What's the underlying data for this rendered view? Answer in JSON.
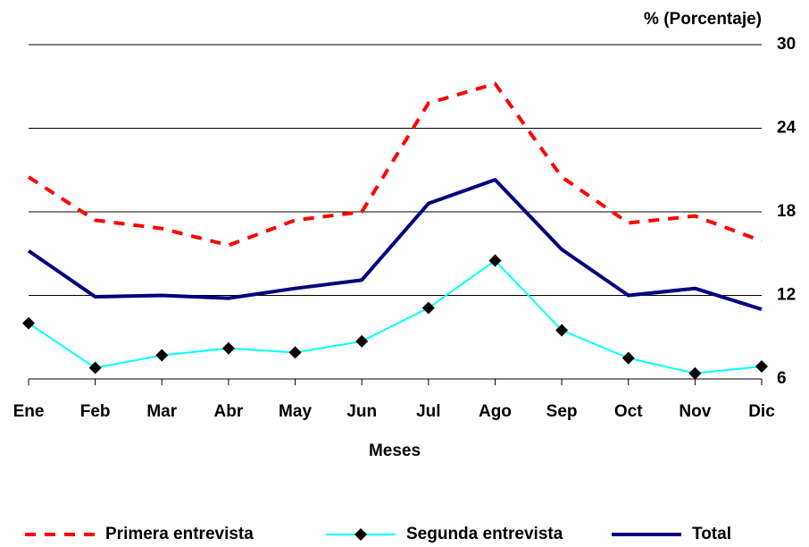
{
  "chart_data": {
    "type": "line",
    "y_label": "% (Porcentaje)",
    "x_label": "Meses",
    "categories": [
      "Ene",
      "Feb",
      "Mar",
      "Abr",
      "May",
      "Jun",
      "Jul",
      "Ago",
      "Sep",
      "Oct",
      "Nov",
      "Dic"
    ],
    "series": [
      {
        "name": "Primera entrevista",
        "color": "#ff0000",
        "dash": true,
        "marker": null,
        "values": [
          20.5,
          17.4,
          16.8,
          15.6,
          17.4,
          18.0,
          25.8,
          27.2,
          20.5,
          17.2,
          17.7,
          15.9
        ]
      },
      {
        "name": "Segunda entrevista",
        "color": "#00ffff",
        "dash": false,
        "marker": "diamond",
        "values": [
          10.0,
          6.8,
          7.7,
          8.2,
          7.9,
          8.7,
          11.1,
          14.5,
          9.5,
          7.5,
          6.4,
          6.9
        ]
      },
      {
        "name": "Total",
        "color": "#000080",
        "dash": false,
        "marker": null,
        "values": [
          15.2,
          11.9,
          12.0,
          11.8,
          12.5,
          13.1,
          18.6,
          20.3,
          15.3,
          12.0,
          12.5,
          11.0
        ]
      }
    ],
    "ylim": [
      6,
      30
    ],
    "yticks": [
      6,
      12,
      18,
      24,
      30
    ],
    "grid": true,
    "y_axis_side": "right",
    "legend": "bottom"
  }
}
